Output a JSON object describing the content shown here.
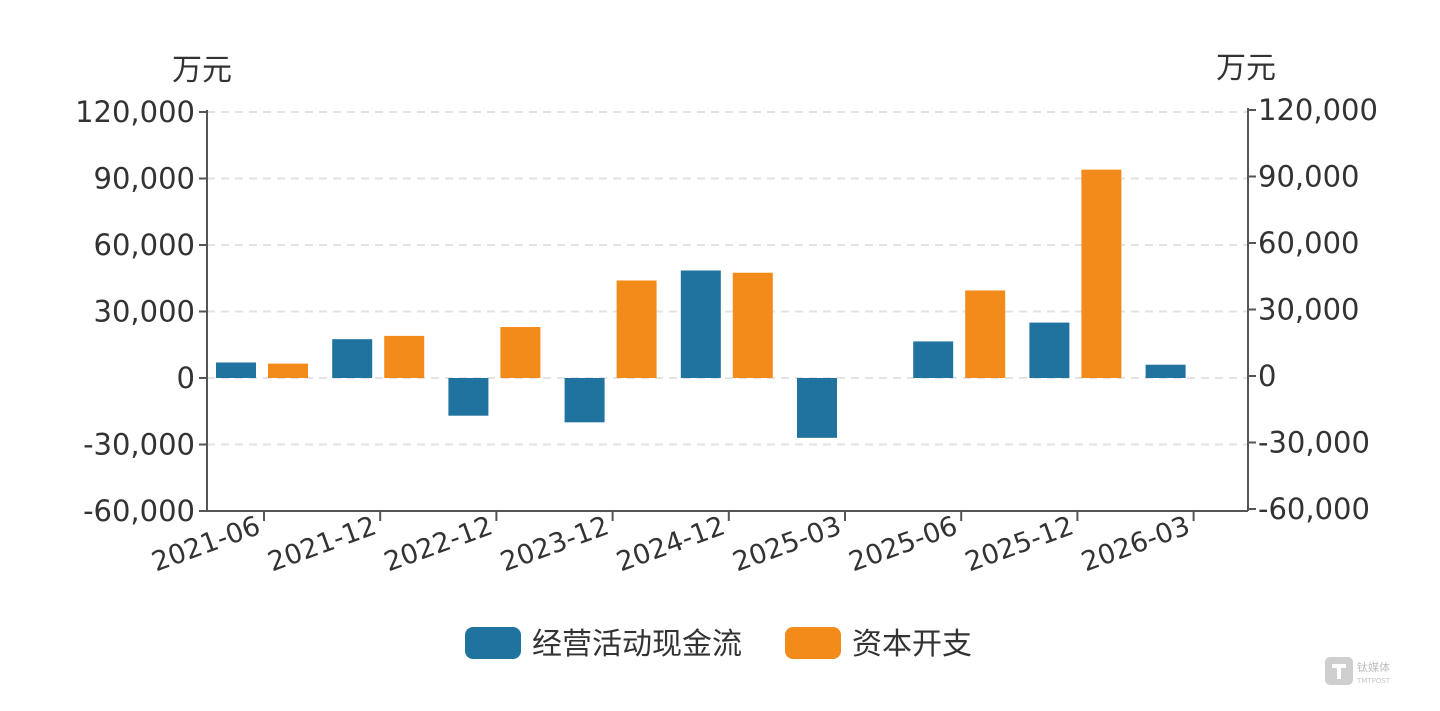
{
  "chart_data": {
    "type": "bar",
    "categories": [
      "2021-06",
      "2021-12",
      "2022-12",
      "2023-12",
      "2024-12",
      "2025-03",
      "2025-06",
      "2025-12",
      "2026-03"
    ],
    "series": [
      {
        "name": "经营活动现金流",
        "color": "#20739f",
        "values": [
          7000,
          17500,
          -17000,
          -20000,
          48500,
          -27000,
          16500,
          25000,
          6000
        ]
      },
      {
        "name": "资本开支",
        "color": "#f38b1b",
        "values": [
          6500,
          19000,
          23000,
          44000,
          47500,
          null,
          39500,
          94000,
          null
        ]
      }
    ],
    "left_axis": {
      "unit": "万元",
      "ticks": [
        "120,000",
        "90,000",
        "60,000",
        "30,000",
        "0",
        "-30,000",
        "-60,000"
      ],
      "ylim": [
        -60000,
        120000
      ]
    },
    "right_axis": {
      "unit": "万元",
      "ticks": [
        "120,000",
        "90,000",
        "60,000",
        "30,000",
        "0",
        "-30,000",
        "-60,000"
      ],
      "ylim": [
        -60000,
        120000
      ]
    },
    "grid": true,
    "legend_position": "bottom"
  },
  "watermark": {
    "main": "钛媒体",
    "sub": "TMTPOST"
  }
}
